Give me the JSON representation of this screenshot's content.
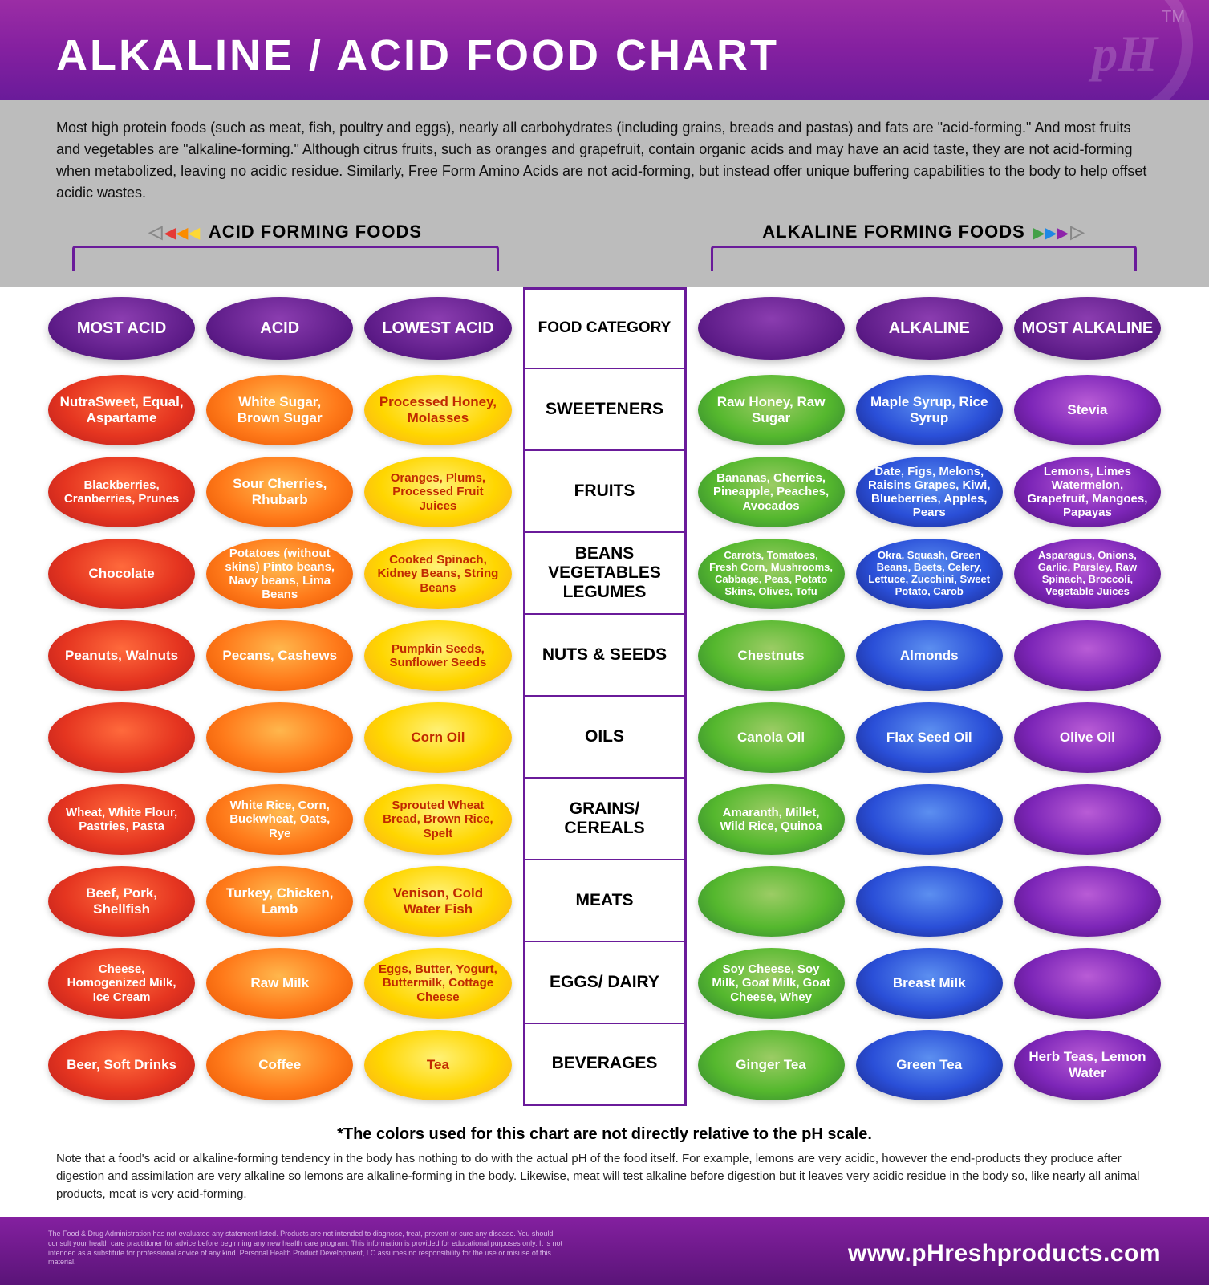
{
  "title": "ALKALINE / ACID FOOD CHART",
  "intro": "Most high protein foods (such as meat, fish, poultry and eggs), nearly all carbohydrates (including grains, breads and pastas) and fats are \"acid-forming.\" And most fruits and vegetables are \"alkaline-forming.\" Although citrus fruits, such as oranges and grapefruit, contain organic acids and may have an acid taste, they are not acid-forming when metabolized, leaving no acidic residue. Similarly, Free Form Amino Acids are not acid-forming, but instead offer unique buffering capabilities to the body to help offset acidic wastes.",
  "section_left": "ACID FORMING FOODS",
  "section_right": "ALKALINE FORMING FOODS",
  "colors": {
    "header_purple": "#6a1b9a",
    "most_acid": "#e53520",
    "acid": "#ff7a1a",
    "lowest_acid": "#ffd600",
    "lowest_alk": "#55b82e",
    "alkaline": "#2a4fd8",
    "most_alk": "#7d26b8"
  },
  "columns": [
    "MOST\nACID",
    "ACID",
    "LOWEST\nACID",
    "FOOD\nCATEGORY",
    "",
    "ALKALINE",
    "MOST\nALKALINE"
  ],
  "hdr": {
    "c0": "MOST ACID",
    "c1": "ACID",
    "c2": "LOWEST ACID",
    "cat": "FOOD CATEGORY",
    "c4": "",
    "c5": "ALKALINE",
    "c6": "MOST ALKALINE"
  },
  "categories": [
    "SWEETENERS",
    "FRUITS",
    "BEANS VEGETABLES LEGUMES",
    "NUTS & SEEDS",
    "OILS",
    "GRAINS/ CEREALS",
    "MEATS",
    "EGGS/ DAIRY",
    "BEVERAGES"
  ],
  "rows": [
    {
      "cat": "SWEETENERS",
      "c0": "NutraSweet, Equal, Aspartame",
      "c1": "White Sugar, Brown Sugar",
      "c2": "Processed Honey, Molasses",
      "c4": "Raw Honey, Raw Sugar",
      "c5": "Maple Syrup, Rice Syrup",
      "c6": "Stevia"
    },
    {
      "cat": "FRUITS",
      "c0": "Blackberries, Cranberries, Prunes",
      "c1": "Sour Cherries, Rhubarb",
      "c2": "Oranges, Plums, Processed Fruit Juices",
      "c4": "Bananas, Cherries, Pineapple, Peaches, Avocados",
      "c5": "Date, Figs, Melons, Raisins Grapes, Kiwi, Blueberries, Apples, Pears",
      "c6": "Lemons, Limes Watermelon, Grapefruit, Mangoes, Papayas"
    },
    {
      "cat": "BEANS VEGETABLES LEGUMES",
      "c0": "Chocolate",
      "c1": "Potatoes (without skins) Pinto beans, Navy beans, Lima Beans",
      "c2": "Cooked Spinach, Kidney Beans, String Beans",
      "c4": "Carrots, Tomatoes, Fresh Corn, Mushrooms, Cabbage, Peas, Potato Skins, Olives, Tofu",
      "c5": "Okra, Squash, Green Beans, Beets, Celery, Lettuce, Zucchini, Sweet Potato, Carob",
      "c6": "Asparagus, Onions, Garlic, Parsley, Raw Spinach, Broccoli, Vegetable Juices"
    },
    {
      "cat": "NUTS & SEEDS",
      "c0": "Peanuts, Walnuts",
      "c1": "Pecans, Cashews",
      "c2": "Pumpkin Seeds, Sunflower Seeds",
      "c4": "Chestnuts",
      "c5": "Almonds",
      "c6": ""
    },
    {
      "cat": "OILS",
      "c0": "",
      "c1": "",
      "c2": "Corn Oil",
      "c4": "Canola Oil",
      "c5": "Flax Seed Oil",
      "c6": "Olive Oil"
    },
    {
      "cat": "GRAINS/ CEREALS",
      "c0": "Wheat, White Flour, Pastries, Pasta",
      "c1": "White Rice, Corn, Buckwheat, Oats, Rye",
      "c2": "Sprouted Wheat Bread, Brown Rice, Spelt",
      "c4": "Amaranth, Millet, Wild Rice, Quinoa",
      "c5": "",
      "c6": ""
    },
    {
      "cat": "MEATS",
      "c0": "Beef, Pork, Shellfish",
      "c1": "Turkey, Chicken, Lamb",
      "c2": "Venison, Cold Water Fish",
      "c4": "",
      "c5": "",
      "c6": ""
    },
    {
      "cat": "EGGS/ DAIRY",
      "c0": "Cheese, Homogenized Milk, Ice Cream",
      "c1": "Raw Milk",
      "c2": "Eggs, Butter, Yogurt, Buttermilk, Cottage Cheese",
      "c4": "Soy Cheese, Soy Milk, Goat Milk, Goat Cheese, Whey",
      "c5": "Breast Milk",
      "c6": ""
    },
    {
      "cat": "BEVERAGES",
      "c0": "Beer, Soft Drinks",
      "c1": "Coffee",
      "c2": "Tea",
      "c4": "Ginger Tea",
      "c5": "Green Tea",
      "c6": "Herb Teas, Lemon Water"
    }
  ],
  "footnote": "*The colors used for this chart are not directly relative to the pH scale.",
  "bottom_note": "Note that a food's acid or alkaline-forming tendency in the body has nothing to do with the actual pH of the food itself. For example, lemons are very acidic, however the end-products they produce after digestion and assimilation are very alkaline so lemons are alkaline-forming in the body. Likewise, meat will test alkaline before digestion but it leaves very acidic residue in the body so, like nearly all animal products, meat is very acid-forming.",
  "disclaimer": "The Food & Drug Administration has not evaluated any statement listed. Products are not intended to diagnose, treat, prevent or cure any disease. You should consult your health care practitioner for advice before beginning any new health care program. This information is provided for educational purposes only. It is not intended as a substitute for professional advice of any kind. Personal Health Product Development, LC assumes no responsibility for the use or misuse of this material.",
  "footer_url": "www.pHreshproducts.com",
  "tm": "TM"
}
